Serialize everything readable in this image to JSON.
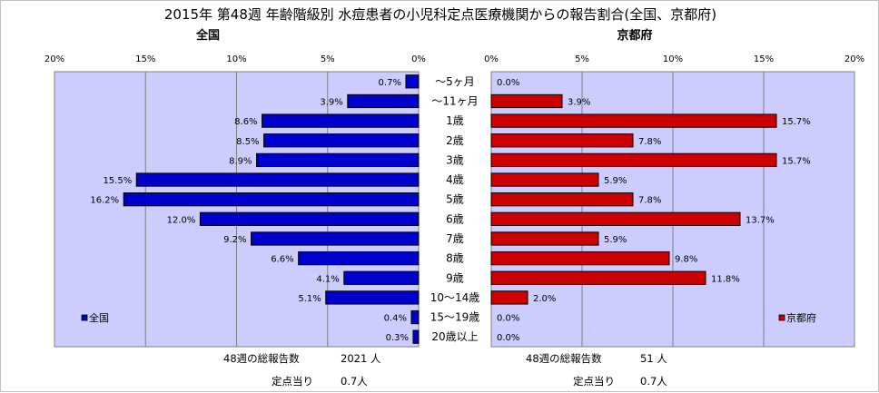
{
  "chart_data": {
    "type": "bar",
    "orientation": "horizontal",
    "title": "2015年 第48週 年齢階級別 水痘患者の小児科定点医療機関からの報告割合(全国、京都府)",
    "categories": [
      "～5ヶ月",
      "～11ヶ月",
      "1歳",
      "2歳",
      "3歳",
      "4歳",
      "5歳",
      "6歳",
      "7歳",
      "8歳",
      "9歳",
      "10～14歳",
      "15～19歳",
      "20歳以上"
    ],
    "xlim": [
      0,
      20
    ],
    "ticks": [
      "0%",
      "5%",
      "10%",
      "15%",
      "20%"
    ],
    "grid": "vertical",
    "panels": [
      {
        "label": "全国",
        "direction": "left",
        "series": {
          "name": "全国",
          "color": "#0000cc",
          "values": [
            0.7,
            3.9,
            8.6,
            8.5,
            8.9,
            15.5,
            16.2,
            12.0,
            9.2,
            6.6,
            4.1,
            5.1,
            0.4,
            0.3
          ],
          "labels": [
            "0.7%",
            "3.9%",
            "8.6%",
            "8.5%",
            "8.9%",
            "15.5%",
            "16.2%",
            "12.0%",
            "9.2%",
            "6.6%",
            "4.1%",
            "5.1%",
            "0.4%",
            "0.3%"
          ]
        },
        "legend": "bottom-left",
        "background": "#ccccff"
      },
      {
        "label": "京都府",
        "direction": "right",
        "series": {
          "name": "京都府",
          "color": "#cc0000",
          "values": [
            0.0,
            3.9,
            15.7,
            7.8,
            15.7,
            5.9,
            7.8,
            13.7,
            5.9,
            9.8,
            11.8,
            2.0,
            0.0,
            0.0
          ],
          "labels": [
            "0.0%",
            "3.9%",
            "15.7%",
            "7.8%",
            "15.7%",
            "5.9%",
            "7.8%",
            "13.7%",
            "5.9%",
            "9.8%",
            "11.8%",
            "2.0%",
            "0.0%",
            "0.0%"
          ]
        },
        "legend": "bottom-right",
        "background": "#ccccff"
      }
    ]
  },
  "footer": {
    "national_total_label": "48週の総報告数",
    "national_total_value": "2021 人",
    "national_per_label": "定点当り",
    "national_per_value": "0.7人",
    "kyoto_total_label": "48週の総報告数",
    "kyoto_total_value": "51 人",
    "kyoto_per_label": "定点当り",
    "kyoto_per_value": "0.7人"
  }
}
